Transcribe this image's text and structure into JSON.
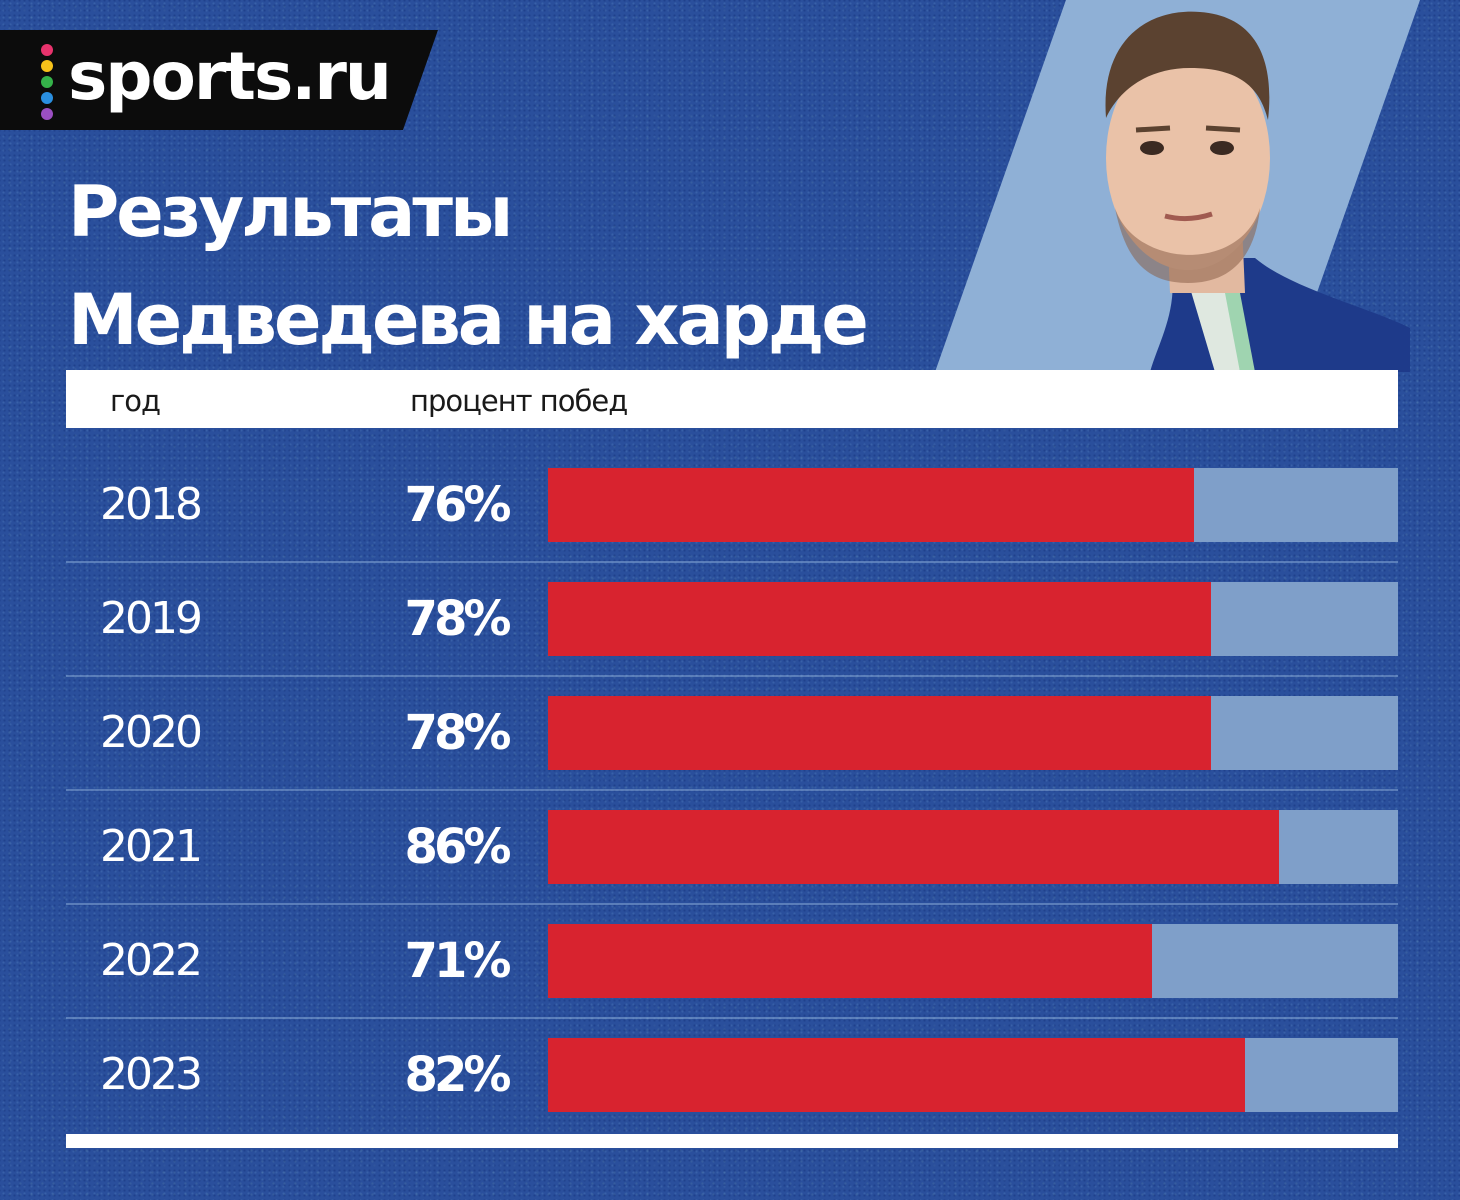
{
  "brand": {
    "logo_text": "sports.ru",
    "dot_colors": [
      "#e8336d",
      "#f7c21a",
      "#35b34a",
      "#2a8fe0",
      "#9b4fc2"
    ]
  },
  "title": "Результаты Медведева на харде",
  "table_header": {
    "year": "год",
    "percent": "процент побед"
  },
  "chart_data": {
    "type": "bar",
    "orientation": "horizontal",
    "title": "Результаты Медведева на харде",
    "category_header": "год",
    "value_header": "процент побед",
    "categories": [
      "2018",
      "2019",
      "2020",
      "2021",
      "2022",
      "2023"
    ],
    "values": [
      76,
      78,
      78,
      86,
      71,
      82
    ],
    "value_labels": [
      "76%",
      "78%",
      "78%",
      "86%",
      "71%",
      "82%"
    ],
    "xlim": [
      0,
      100
    ],
    "bar_color": "#d8232f",
    "track_color": "#7f9fc9",
    "grid": false,
    "legend": false
  }
}
